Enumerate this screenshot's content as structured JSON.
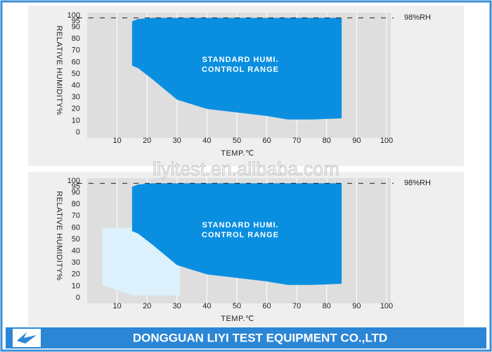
{
  "chart_data": [
    {
      "type": "area",
      "xlabel": "TEMP.℃",
      "ylabel": "RELATIVE HUMIDITY%",
      "xlim": [
        0,
        100
      ],
      "ylim": [
        0,
        100
      ],
      "xticks": [
        10,
        20,
        30,
        40,
        50,
        60,
        70,
        80,
        90,
        100
      ],
      "yticks": [
        0,
        10,
        20,
        30,
        40,
        50,
        60,
        70,
        80,
        90,
        95,
        100
      ],
      "reference_line": {
        "value": 98,
        "label": "98%RH"
      },
      "annotation": [
        "STANDARD HUMI.",
        "CONTROL RANGE"
      ],
      "series": [
        {
          "color": "#0a8fe0",
          "x": [
            15,
            17,
            22,
            30,
            40,
            50,
            60,
            67,
            75,
            85
          ],
          "values": [
            95,
            97,
            98,
            98,
            98,
            98,
            98,
            98,
            98,
            98
          ],
          "lower": [
            57,
            55,
            45,
            28,
            20,
            17,
            14,
            11,
            11,
            12
          ]
        }
      ]
    },
    {
      "type": "area",
      "xlabel": "TEMP.℃",
      "ylabel": "RELATIVE HUMIDITY%",
      "xlim": [
        0,
        100
      ],
      "ylim": [
        0,
        100
      ],
      "xticks": [
        10,
        20,
        30,
        40,
        50,
        60,
        70,
        80,
        90,
        100
      ],
      "yticks": [
        0,
        10,
        20,
        30,
        40,
        50,
        60,
        70,
        80,
        90,
        95,
        100
      ],
      "reference_line": {
        "value": 98,
        "label": "98%RH"
      },
      "annotation": [
        "STANDARD HUMI.",
        "CONTROL RANGE"
      ],
      "series": [
        {
          "color": "#dcf1fb",
          "x": [
            5,
            15,
            31
          ],
          "values": [
            60,
            60,
            60
          ],
          "lower": [
            11,
            2,
            2
          ]
        },
        {
          "color": "#0a8fe0",
          "x": [
            15,
            17,
            22,
            30,
            40,
            50,
            60,
            67,
            75,
            85
          ],
          "values": [
            95,
            97,
            98,
            98,
            98,
            98,
            98,
            98,
            98,
            98
          ],
          "lower": [
            57,
            55,
            45,
            28,
            20,
            17,
            14,
            11,
            11,
            12
          ]
        }
      ]
    }
  ],
  "watermark": "liyitest.en.alibaba.com",
  "footer": "DONGGUAN LIYI TEST EQUIPMENT CO.,LTD"
}
